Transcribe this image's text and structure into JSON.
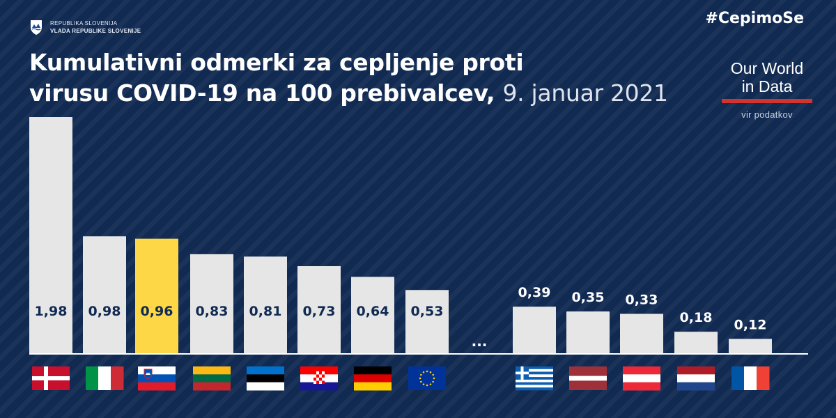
{
  "header": {
    "gov_line1": "REPUBLIKA SLOVENIJA",
    "gov_line2": "VLADA REPUBLIKE SLOVENIJE",
    "hashtag": "#CepimoSe",
    "title_line1": "Kumulativni odmerki za cepljenje proti",
    "title_line2": "virusu COVID-19 na 100 prebivalcev,",
    "date": "9. januar 2021",
    "source_name_line1": "Our World",
    "source_name_line2": "in Data",
    "source_label": "vir podatkov"
  },
  "colors": {
    "background": "#112a52",
    "bar": "#e6e6e6",
    "highlight": "#fdd746",
    "value_inside": "#112a52",
    "value_outside": "#ffffff",
    "source_accent": "#d0342c"
  },
  "chart_data": {
    "type": "bar",
    "title": "Kumulativni odmerki za cepljenje proti virusu COVID-19 na 100 prebivalcev, 9. januar 2021",
    "gap_label": "...",
    "ylim": [
      0,
      2.1
    ],
    "grid": false,
    "categories": [
      "Denmark",
      "Italy",
      "Slovenia",
      "Lithuania",
      "Estonia",
      "Croatia",
      "Germany",
      "European Union",
      "Greece",
      "Latvia",
      "Austria",
      "Netherlands",
      "France"
    ],
    "flags": [
      "flag-denmark",
      "flag-italy",
      "flag-slovenia",
      "flag-lithuania",
      "flag-estonia",
      "flag-croatia",
      "flag-germany",
      "flag-eu",
      "flag-greece",
      "flag-latvia",
      "flag-austria",
      "flag-netherlands",
      "flag-france"
    ],
    "values": [
      1.98,
      0.98,
      0.96,
      0.83,
      0.81,
      0.73,
      0.64,
      0.53,
      0.39,
      0.35,
      0.33,
      0.18,
      0.12
    ],
    "value_labels": [
      "1,98",
      "0,98",
      "0,96",
      "0,83",
      "0,81",
      "0,73",
      "0,64",
      "0,53",
      "0,39",
      "0,35",
      "0,33",
      "0,18",
      "0,12"
    ],
    "highlight": "Slovenia"
  }
}
